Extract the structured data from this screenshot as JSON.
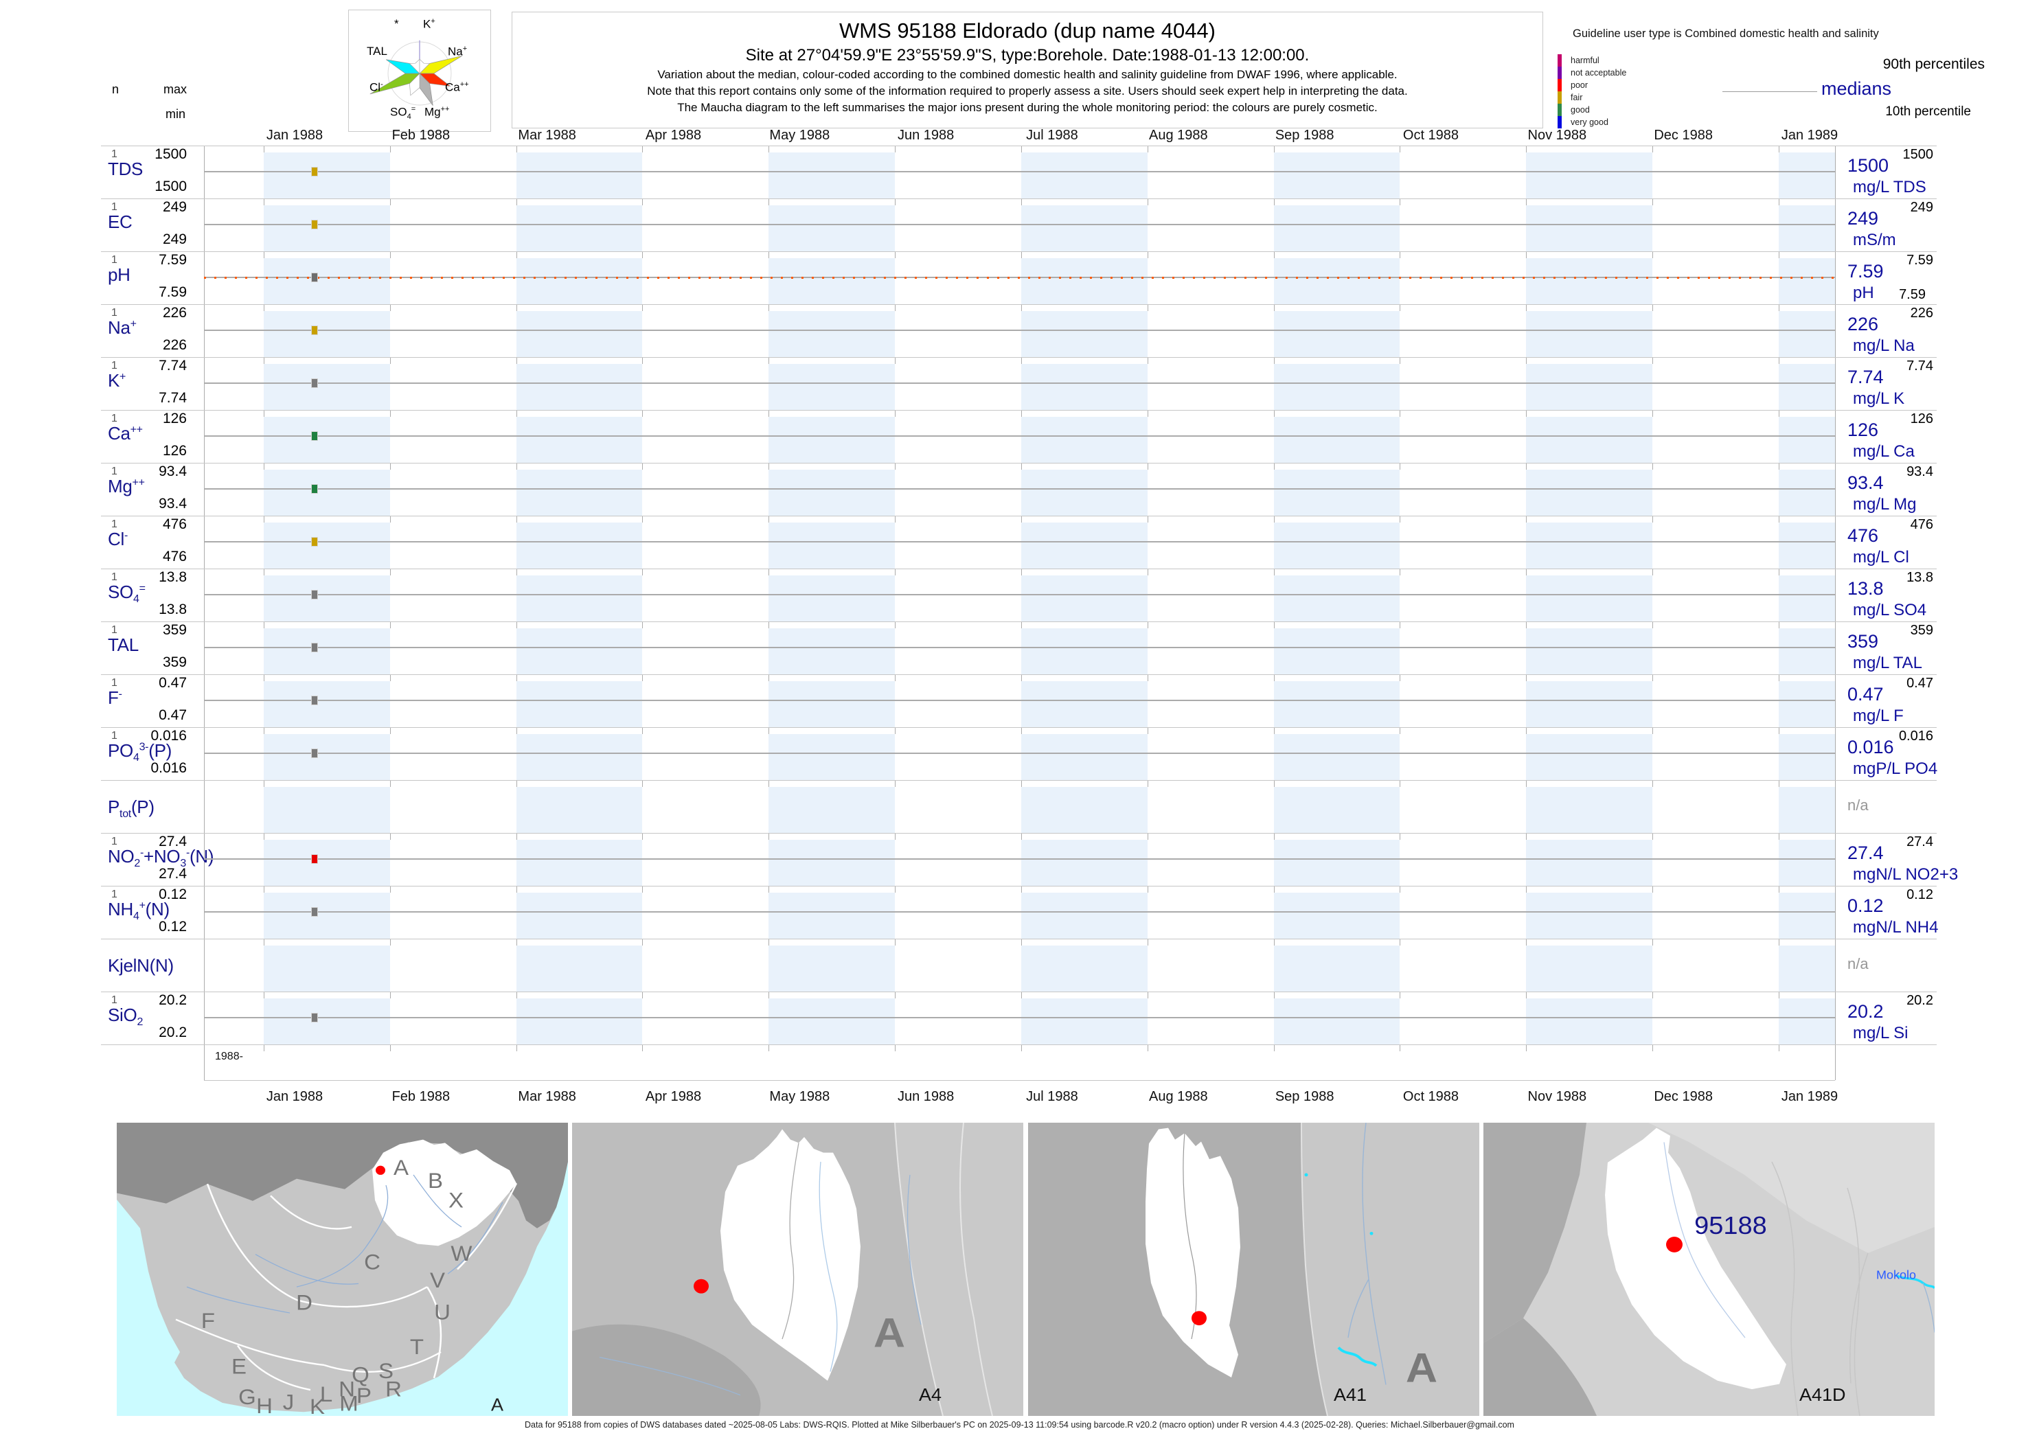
{
  "header": {
    "stats": {
      "n": "n",
      "max": "max",
      "min": "min"
    },
    "title": "WMS 95188  Eldorado (dup name 4044)",
    "site_line": "Site at 27°04'59.9\"E 23°55'59.9\"S, type:Borehole. Date:1988-01-13 12:00:00.",
    "notes": [
      "Variation about the median,  colour-coded according to the combined domestic health and salinity guideline from DWAF 1996, where applicable.",
      "Note that this report contains only some of the information required to properly assess a site. Users should seek expert help in interpreting the data.",
      "The Maucha diagram to the left summarises the major ions present during the whole monitoring period: the colours are purely cosmetic."
    ],
    "maucha_ions": [
      "*",
      "K<sup>+</sup>",
      "TAL",
      "Na<sup>+</sup>",
      "Cl<sup>-</sup>",
      "Ca<sup>++</sup>",
      "SO<sub>4</sub><sup>=</sup>",
      "Mg<sup>++</sup>"
    ],
    "guideline": {
      "title": "Guideline user type is Combined domestic health and salinity",
      "classes": [
        {
          "label": "harmful",
          "color": "#C4006B"
        },
        {
          "label": "not acceptable",
          "color": "#7A00A8"
        },
        {
          "label": "poor",
          "color": "#FF0000"
        },
        {
          "label": "fair",
          "color": "#C8A000"
        },
        {
          "label": "good",
          "color": "#2F8B4C"
        },
        {
          "label": "very good",
          "color": "#0008E0"
        }
      ],
      "p90_label": "90th percentiles",
      "median_label": "medians",
      "p10_label": "10th percentile"
    }
  },
  "axis": {
    "months": [
      "Jan 1988",
      "Feb 1988",
      "Mar 1988",
      "Apr 1988",
      "May 1988",
      "Jun 1988",
      "Jul 1988",
      "Aug 1988",
      "Sep 1988",
      "Oct 1988",
      "Nov 1988",
      "Dec 1988",
      "Jan 1989"
    ],
    "year_label": "1988-",
    "band_color": "#E9F2FB"
  },
  "rows": [
    {
      "name_html": "TDS",
      "n": "1",
      "max": "1500",
      "min": "1500",
      "p90": "1500",
      "median": "1500",
      "unit": "mg/L TDS",
      "point_color": "#C8A000",
      "has_data": true
    },
    {
      "name_html": "EC",
      "n": "1",
      "max": "249",
      "min": "249",
      "p90": "249",
      "median": "249",
      "unit": "mS/m",
      "point_color": "#C8A000",
      "has_data": true
    },
    {
      "name_html": "pH",
      "n": "1",
      "max": "7.59",
      "min": "7.59",
      "p90": "7.59",
      "median": "7.59",
      "p10": "7.59",
      "unit": "pH",
      "point_color": "#6E6E6E",
      "has_data": true,
      "guideline_line": true,
      "guideline_color": "#FF5A00"
    },
    {
      "name_html": "Na<sup>+</sup>",
      "n": "1",
      "max": "226",
      "min": "226",
      "p90": "226",
      "median": "226",
      "unit": "mg/L Na",
      "point_color": "#C8A000",
      "has_data": true
    },
    {
      "name_html": "K<sup>+</sup>",
      "n": "1",
      "max": "7.74",
      "min": "7.74",
      "p90": "7.74",
      "median": "7.74",
      "unit": "mg/L K",
      "point_color": "#7A7A7A",
      "has_data": true
    },
    {
      "name_html": "Ca<sup>++</sup>",
      "n": "1",
      "max": "126",
      "min": "126",
      "p90": "126",
      "median": "126",
      "unit": "mg/L Ca",
      "point_color": "#1F8040",
      "has_data": true
    },
    {
      "name_html": "Mg<sup>++</sup>",
      "n": "1",
      "max": "93.4",
      "min": "93.4",
      "p90": "93.4",
      "median": "93.4",
      "unit": "mg/L Mg",
      "point_color": "#1F8040",
      "has_data": true
    },
    {
      "name_html": "Cl<sup>-</sup>",
      "n": "1",
      "max": "476",
      "min": "476",
      "p90": "476",
      "median": "476",
      "unit": "mg/L Cl",
      "point_color": "#C8A000",
      "has_data": true
    },
    {
      "name_html": "SO<sub>4</sub><sup>=</sup>",
      "n": "1",
      "max": "13.8",
      "min": "13.8",
      "p90": "13.8",
      "median": "13.8",
      "unit": "mg/L SO4",
      "point_color": "#7A7A7A",
      "has_data": true
    },
    {
      "name_html": "TAL",
      "n": "1",
      "max": "359",
      "min": "359",
      "p90": "359",
      "median": "359",
      "unit": "mg/L TAL",
      "point_color": "#7A7A7A",
      "has_data": true
    },
    {
      "name_html": "F<sup>-</sup>",
      "n": "1",
      "max": "0.47",
      "min": "0.47",
      "p90": "0.47",
      "median": "0.47",
      "unit": "mg/L F",
      "point_color": "#7A7A7A",
      "has_data": true
    },
    {
      "name_html": "PO<sub>4</sub><sup>3-</sup>(P)",
      "n": "1",
      "max": "0.016",
      "min": "0.016",
      "p90": "0.016",
      "median": "0.016",
      "unit": "mgP/L PO4",
      "point_color": "#7A7A7A",
      "has_data": true
    },
    {
      "name_html": "P<sub>tot</sub>(P)",
      "has_data": false,
      "na_label": "n/a"
    },
    {
      "name_html": "NO<sub>2</sub><sup>-</sup>+NO<sub>3</sub><sup>-</sup>(N)",
      "n": "1",
      "max": "27.4",
      "min": "27.4",
      "p90": "27.4",
      "median": "27.4",
      "unit": "mgN/L NO2+3",
      "point_color": "#E60000",
      "has_data": true
    },
    {
      "name_html": "NH<sub>4</sub><sup>+</sup>(N)",
      "n": "1",
      "max": "0.12",
      "min": "0.12",
      "p90": "0.12",
      "median": "0.12",
      "unit": "mgN/L NH4",
      "point_color": "#7A7A7A",
      "has_data": true
    },
    {
      "name_html": "KjelN(N)",
      "has_data": false,
      "na_label": "n/a"
    },
    {
      "name_html": "SiO<sub>2</sub>",
      "n": "1",
      "max": "20.2",
      "min": "20.2",
      "p90": "20.2",
      "median": "20.2",
      "unit": "mg/L Si",
      "point_color": "#7A7A7A",
      "has_data": true
    }
  ],
  "maps": [
    {
      "name": "south-africa-primary-drainage",
      "corner_label": "A",
      "region_letters": [
        "A",
        "B",
        "X",
        "C",
        "W",
        "V",
        "U",
        "D",
        "T",
        "F",
        "E",
        "S",
        "Q",
        "R",
        "L",
        "N",
        "J",
        "G",
        "H",
        "K",
        "M",
        "P"
      ]
    },
    {
      "name": "primary-region-A",
      "big_label": "A",
      "corner_label": "A4"
    },
    {
      "name": "secondary-region-A41",
      "big_label": "A",
      "corner_label": "A41"
    },
    {
      "name": "quaternary-region-A41D",
      "site_label": "95188",
      "river_label": "Mokolo",
      "corner_label": "A41D"
    }
  ],
  "footer": "Data for 95188 from copies of DWS databases dated ~2025-08-05 Labs: DWS-RQIS. Plotted at Mike Silberbauer's PC on 2025-09-13 11:09:54 using barcode.R v20.2 (macro option) under R version 4.4.3 (2025-02-28). Queries: Michael.Silberbauer@gmail.com",
  "chart_data": {
    "type": "scatter",
    "title": "WMS 95188 Eldorado (dup name 4044) — variation about the median per determinand",
    "sample_date": "1988-01-13 12:00:00",
    "x": [
      "1988-01-13"
    ],
    "x_axis_ticks": [
      "Jan 1988",
      "Feb 1988",
      "Mar 1988",
      "Apr 1988",
      "May 1988",
      "Jun 1988",
      "Jul 1988",
      "Aug 1988",
      "Sep 1988",
      "Oct 1988",
      "Nov 1988",
      "Dec 1988",
      "Jan 1989"
    ],
    "series": [
      {
        "name": "TDS",
        "unit": "mg/L",
        "n": 1,
        "values": [
          1500
        ],
        "min": 1500,
        "max": 1500,
        "median": 1500,
        "p90": 1500
      },
      {
        "name": "EC",
        "unit": "mS/m",
        "n": 1,
        "values": [
          249
        ],
        "min": 249,
        "max": 249,
        "median": 249,
        "p90": 249
      },
      {
        "name": "pH",
        "unit": "pH",
        "n": 1,
        "values": [
          7.59
        ],
        "min": 7.59,
        "max": 7.59,
        "median": 7.59,
        "p90": 7.59,
        "p10": 7.59
      },
      {
        "name": "Na",
        "unit": "mg/L",
        "n": 1,
        "values": [
          226
        ],
        "min": 226,
        "max": 226,
        "median": 226,
        "p90": 226
      },
      {
        "name": "K",
        "unit": "mg/L",
        "n": 1,
        "values": [
          7.74
        ],
        "min": 7.74,
        "max": 7.74,
        "median": 7.74,
        "p90": 7.74
      },
      {
        "name": "Ca",
        "unit": "mg/L",
        "n": 1,
        "values": [
          126
        ],
        "min": 126,
        "max": 126,
        "median": 126,
        "p90": 126
      },
      {
        "name": "Mg",
        "unit": "mg/L",
        "n": 1,
        "values": [
          93.4
        ],
        "min": 93.4,
        "max": 93.4,
        "median": 93.4,
        "p90": 93.4
      },
      {
        "name": "Cl",
        "unit": "mg/L",
        "n": 1,
        "values": [
          476
        ],
        "min": 476,
        "max": 476,
        "median": 476,
        "p90": 476
      },
      {
        "name": "SO4",
        "unit": "mg/L",
        "n": 1,
        "values": [
          13.8
        ],
        "min": 13.8,
        "max": 13.8,
        "median": 13.8,
        "p90": 13.8
      },
      {
        "name": "TAL",
        "unit": "mg/L",
        "n": 1,
        "values": [
          359
        ],
        "min": 359,
        "max": 359,
        "median": 359,
        "p90": 359
      },
      {
        "name": "F",
        "unit": "mg/L",
        "n": 1,
        "values": [
          0.47
        ],
        "min": 0.47,
        "max": 0.47,
        "median": 0.47,
        "p90": 0.47
      },
      {
        "name": "PO4(P)",
        "unit": "mgP/L",
        "n": 1,
        "values": [
          0.016
        ],
        "min": 0.016,
        "max": 0.016,
        "median": 0.016,
        "p90": 0.016
      },
      {
        "name": "Ptot(P)",
        "n": 0,
        "values": []
      },
      {
        "name": "NO2+NO3(N)",
        "unit": "mgN/L",
        "n": 1,
        "values": [
          27.4
        ],
        "min": 27.4,
        "max": 27.4,
        "median": 27.4,
        "p90": 27.4
      },
      {
        "name": "NH4(N)",
        "unit": "mgN/L",
        "n": 1,
        "values": [
          0.12
        ],
        "min": 0.12,
        "max": 0.12,
        "median": 0.12,
        "p90": 0.12
      },
      {
        "name": "KjelN(N)",
        "n": 0,
        "values": []
      },
      {
        "name": "SiO2",
        "unit": "mg/L",
        "n": 1,
        "values": [
          20.2
        ],
        "min": 20.2,
        "max": 20.2,
        "median": 20.2,
        "p90": 20.2
      }
    ]
  }
}
